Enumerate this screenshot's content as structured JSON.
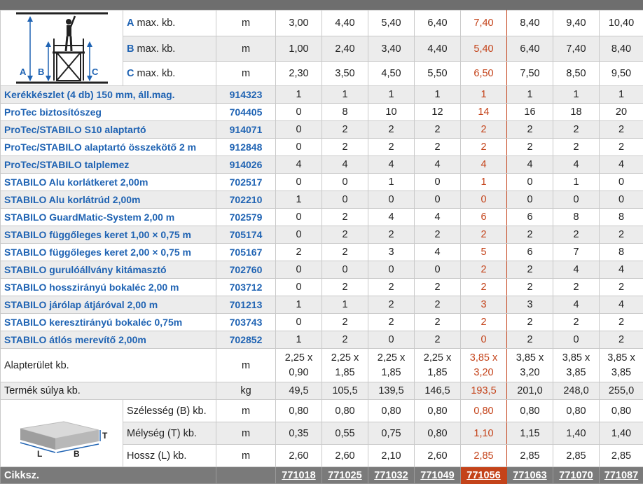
{
  "header_rows": [
    {
      "letter": "A",
      "label": " max. kb.",
      "unit": "m",
      "values": [
        "3,00",
        "4,40",
        "5,40",
        "6,40",
        "7,40",
        "8,40",
        "9,40",
        "10,40"
      ]
    },
    {
      "letter": "B",
      "label": " max. kb.",
      "unit": "m",
      "values": [
        "1,00",
        "2,40",
        "3,40",
        "4,40",
        "5,40",
        "6,40",
        "7,40",
        "8,40"
      ]
    },
    {
      "letter": "C",
      "label": " max. kb.",
      "unit": "m",
      "values": [
        "2,30",
        "3,50",
        "4,50",
        "5,50",
        "6,50",
        "7,50",
        "8,50",
        "9,50"
      ]
    }
  ],
  "diagram_labels": {
    "a": "A",
    "b": "B",
    "c": "C"
  },
  "parts": [
    {
      "name": "Kerékkészlet (4 db) 150 mm, áll.mag.",
      "code": "914323",
      "values": [
        "1",
        "1",
        "1",
        "1",
        "1",
        "1",
        "1",
        "1"
      ]
    },
    {
      "name": "ProTec biztosítószeg",
      "code": "704405",
      "values": [
        "0",
        "8",
        "10",
        "12",
        "14",
        "16",
        "18",
        "20"
      ]
    },
    {
      "name": "ProTec/STABILO S10 alaptartó",
      "code": "914071",
      "values": [
        "0",
        "2",
        "2",
        "2",
        "2",
        "2",
        "2",
        "2"
      ]
    },
    {
      "name": "ProTec/STABILO alaptartó összekötő 2 m",
      "code": "912848",
      "values": [
        "0",
        "2",
        "2",
        "2",
        "2",
        "2",
        "2",
        "2"
      ]
    },
    {
      "name": "ProTec/STABILO talplemez",
      "code": "914026",
      "values": [
        "4",
        "4",
        "4",
        "4",
        "4",
        "4",
        "4",
        "4"
      ]
    },
    {
      "name": "STABILO Alu korlátkeret 2,00m",
      "code": "702517",
      "values": [
        "0",
        "0",
        "1",
        "0",
        "1",
        "0",
        "1",
        "0"
      ]
    },
    {
      "name": "STABILO Alu korlátrúd 2,00m",
      "code": "702210",
      "values": [
        "1",
        "0",
        "0",
        "0",
        "0",
        "0",
        "0",
        "0"
      ]
    },
    {
      "name": "STABILO GuardMatic-System 2,00 m",
      "code": "702579",
      "values": [
        "0",
        "2",
        "4",
        "4",
        "6",
        "6",
        "8",
        "8"
      ]
    },
    {
      "name": "STABILO függőleges keret 1,00 × 0,75 m",
      "code": "705174",
      "values": [
        "0",
        "2",
        "2",
        "2",
        "2",
        "2",
        "2",
        "2"
      ]
    },
    {
      "name": "STABILO függőleges keret 2,00 × 0,75 m",
      "code": "705167",
      "values": [
        "2",
        "2",
        "3",
        "4",
        "5",
        "6",
        "7",
        "8"
      ]
    },
    {
      "name": "STABILO gurulóállvány kitámasztó",
      "code": "702760",
      "values": [
        "0",
        "0",
        "0",
        "0",
        "2",
        "2",
        "4",
        "4"
      ]
    },
    {
      "name": "STABILO hosszirányú bokaléc 2,00 m",
      "code": "703712",
      "values": [
        "0",
        "2",
        "2",
        "2",
        "2",
        "2",
        "2",
        "2"
      ]
    },
    {
      "name": "STABILO járólap átjáróval 2,00 m",
      "code": "701213",
      "values": [
        "1",
        "1",
        "2",
        "2",
        "3",
        "3",
        "4",
        "4"
      ]
    },
    {
      "name": "STABILO keresztirányú bokaléc 0,75m",
      "code": "703743",
      "values": [
        "0",
        "2",
        "2",
        "2",
        "2",
        "2",
        "2",
        "2"
      ]
    },
    {
      "name": "STABILO átlós merevítő 2,00m",
      "code": "702852",
      "values": [
        "1",
        "2",
        "0",
        "2",
        "0",
        "2",
        "0",
        "2"
      ]
    }
  ],
  "area": {
    "label": "Alapterület kb.",
    "unit": "m",
    "top": [
      "2,25 x",
      "2,25 x",
      "2,25 x",
      "2,25 x",
      "3,85 x",
      "3,85 x",
      "3,85 x",
      "3,85 x"
    ],
    "bottom": [
      "0,90",
      "1,85",
      "1,85",
      "1,85",
      "3,20",
      "3,20",
      "3,85",
      "3,85"
    ]
  },
  "weight": {
    "label": "Termék súlya kb.",
    "unit": "kg",
    "values": [
      "49,5",
      "105,5",
      "139,5",
      "146,5",
      "193,5",
      "201,0",
      "248,0",
      "255,0"
    ]
  },
  "package_labels": {
    "t": "T",
    "l": "L",
    "b": "B"
  },
  "package": [
    {
      "label": "Szélesség (B) kb.",
      "unit": "m",
      "values": [
        "0,80",
        "0,80",
        "0,80",
        "0,80",
        "0,80",
        "0,80",
        "0,80",
        "0,80"
      ]
    },
    {
      "label": "Mélység (T) kb.",
      "unit": "m",
      "values": [
        "0,35",
        "0,55",
        "0,75",
        "0,80",
        "1,10",
        "1,15",
        "1,40",
        "1,40"
      ]
    },
    {
      "label": "Hossz (L) kb.",
      "unit": "m",
      "values": [
        "2,60",
        "2,60",
        "2,10",
        "2,60",
        "2,85",
        "2,85",
        "2,85",
        "2,85"
      ]
    }
  ],
  "footer": {
    "label": "Cikksz.",
    "codes": [
      "771018",
      "771025",
      "771032",
      "771049",
      "771056",
      "771063",
      "771070",
      "771087"
    ]
  }
}
